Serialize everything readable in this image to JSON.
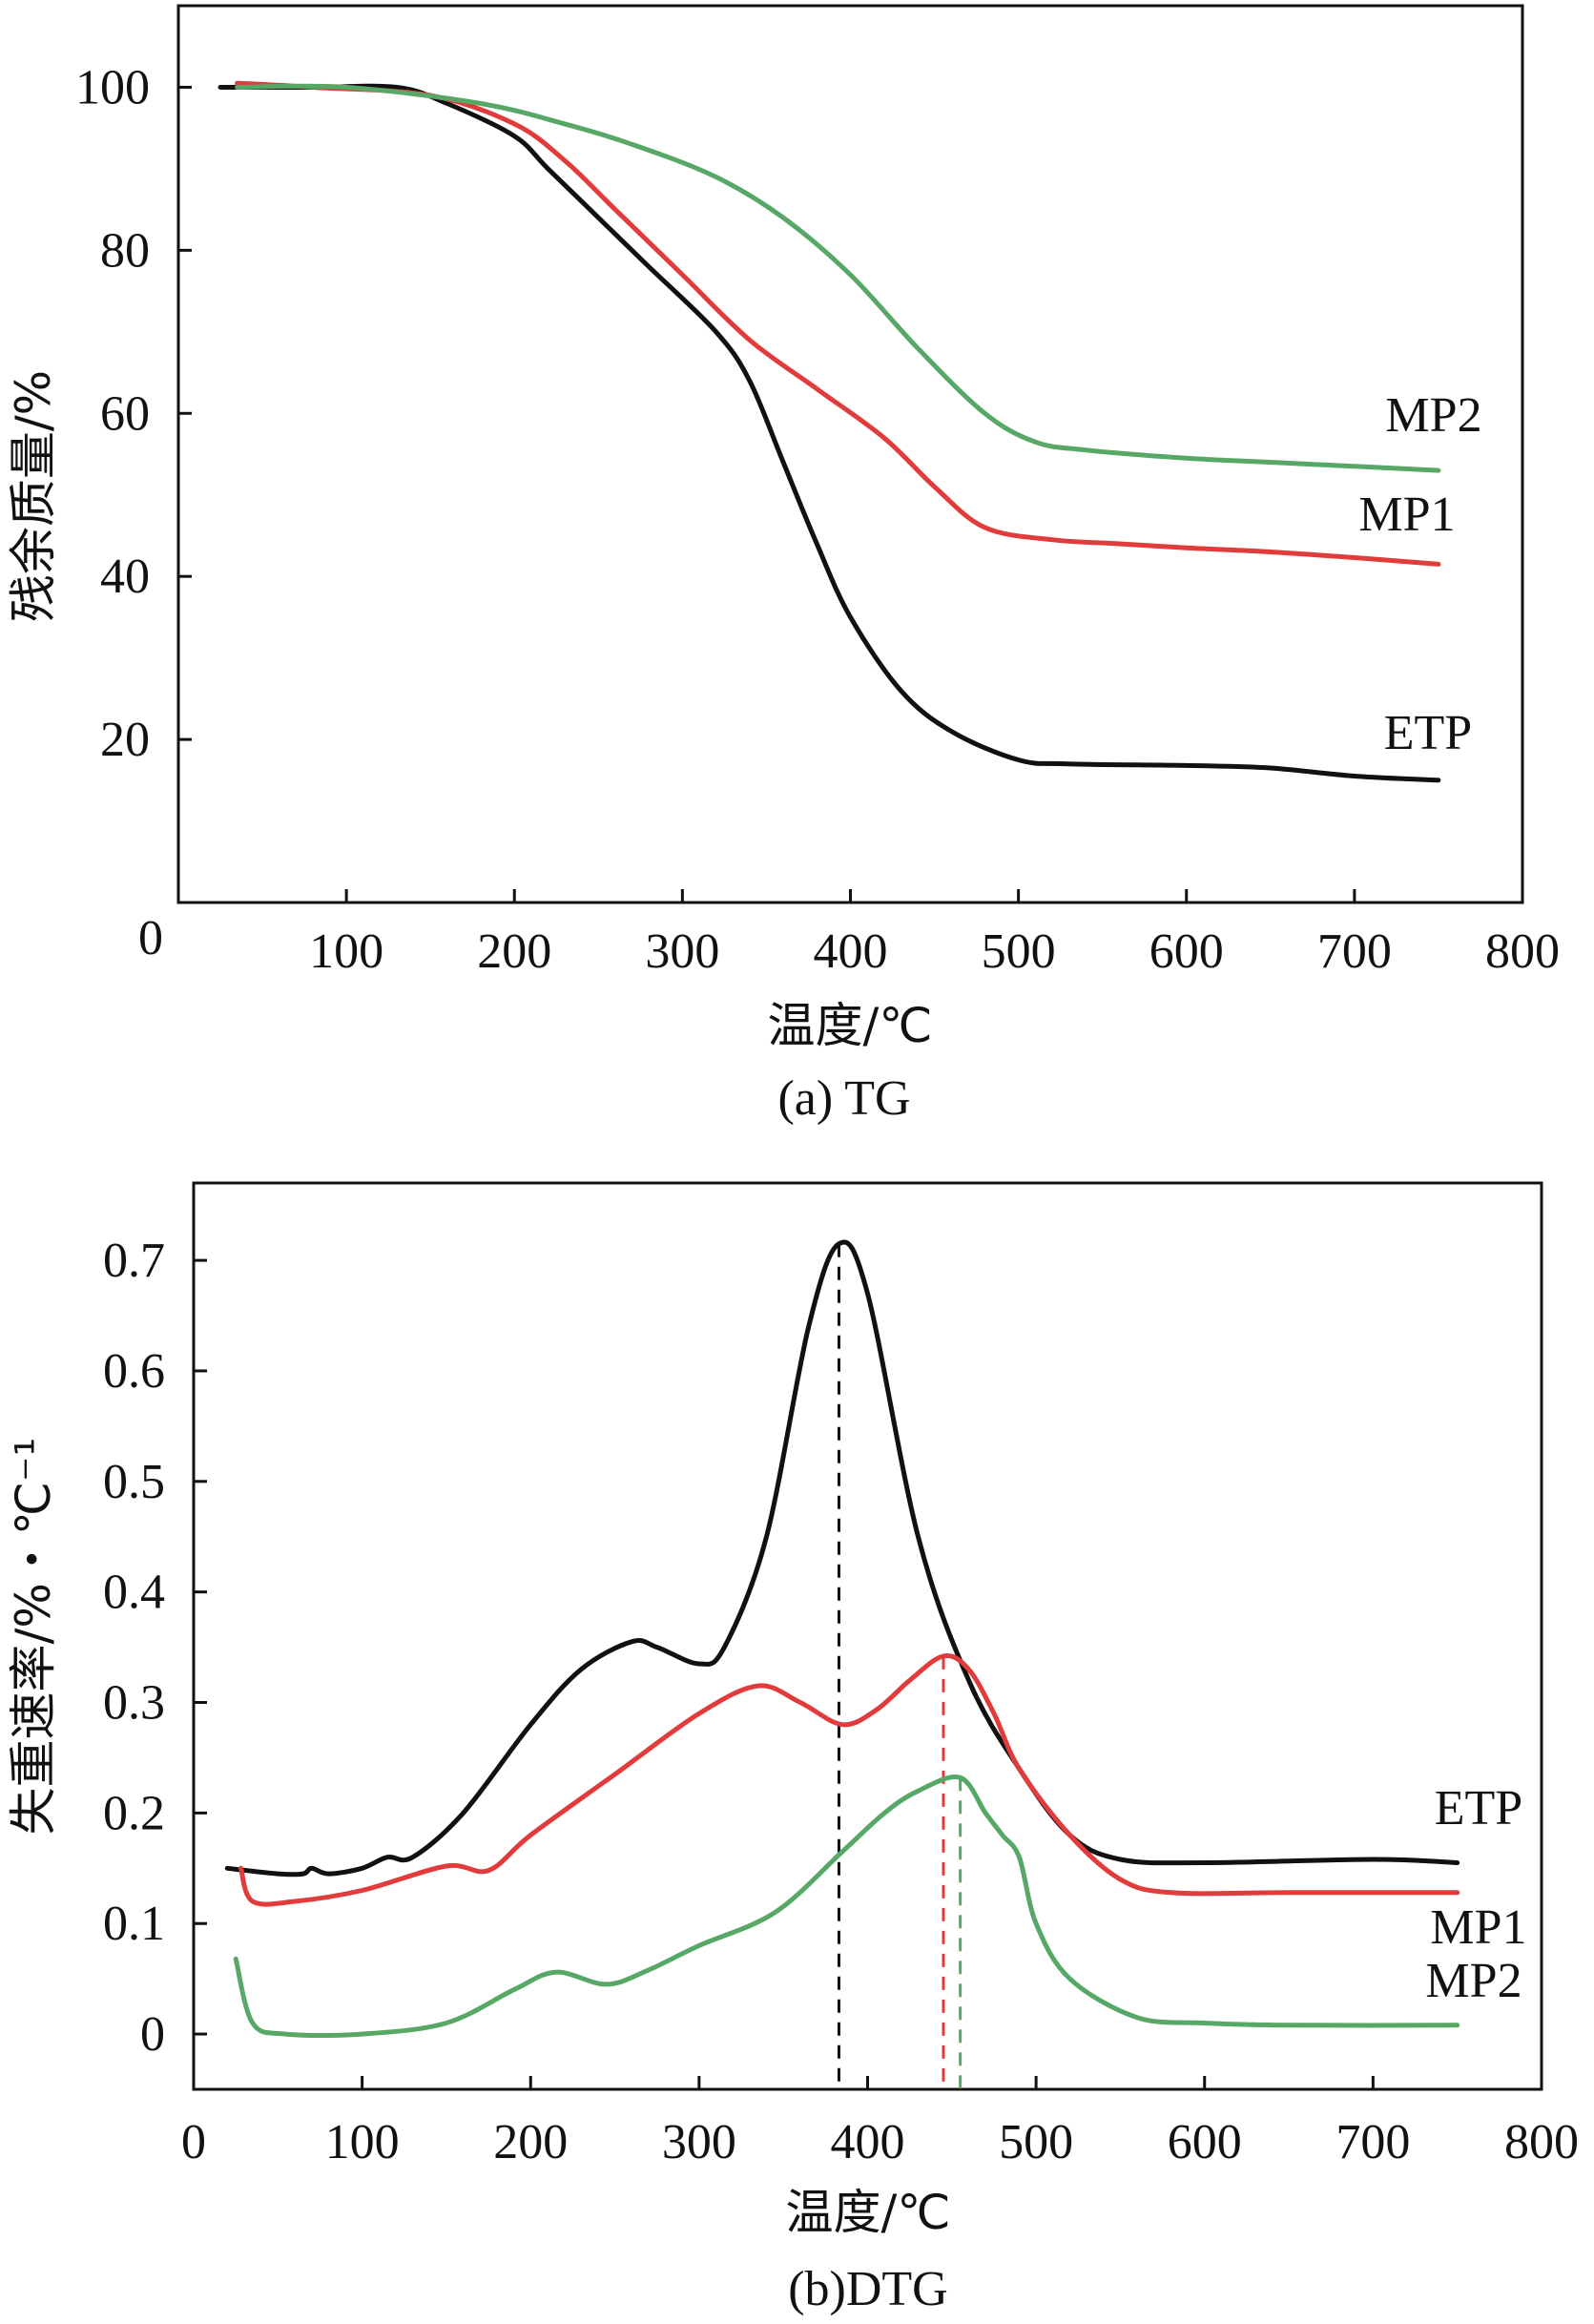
{
  "chart_data": [
    {
      "type": "line",
      "title": "(a) TG",
      "xlabel": "温度/℃",
      "ylabel": "残余质量/%",
      "xlim": [
        0,
        800
      ],
      "ylim": [
        0,
        110
      ],
      "x_ticks": [
        100,
        200,
        300,
        400,
        500,
        600,
        700,
        800
      ],
      "y_ticks": [
        20,
        40,
        60,
        80,
        100
      ],
      "origin_label": "0",
      "series": [
        {
          "name": "ETP",
          "color": "#111111",
          "x": [
            25,
            80,
            130,
            160,
            200,
            220,
            250,
            280,
            320,
            340,
            360,
            380,
            400,
            430,
            460,
            500,
            530,
            600,
            650,
            700,
            750
          ],
          "y": [
            100,
            100,
            100,
            98,
            94,
            90,
            84,
            78,
            70,
            64,
            54,
            44,
            35,
            26,
            21,
            17.5,
            17,
            16.8,
            16.5,
            15.5,
            15
          ]
        },
        {
          "name": "MP1",
          "color": "#e23b3b",
          "x": [
            35,
            80,
            150,
            200,
            230,
            260,
            300,
            340,
            380,
            420,
            450,
            480,
            520,
            560,
            600,
            650,
            700,
            750
          ],
          "y": [
            100.5,
            100,
            99,
            95.5,
            91,
            85,
            77,
            69,
            63,
            57,
            51,
            46,
            44.5,
            44,
            43.5,
            43,
            42.3,
            41.5
          ]
        },
        {
          "name": "MP2",
          "color": "#57a866",
          "x": [
            35,
            100,
            180,
            230,
            270,
            320,
            360,
            400,
            440,
            480,
            510,
            540,
            600,
            650,
            700,
            750
          ],
          "y": [
            100,
            100,
            98,
            95.5,
            93,
            89,
            84,
            77,
            68,
            60,
            56.5,
            55.5,
            54.5,
            54,
            53.5,
            53
          ]
        }
      ]
    },
    {
      "type": "line",
      "title": "(b)DTG",
      "xlabel": "温度/℃",
      "ylabel": "失重速率/%・℃⁻¹",
      "xlim": [
        0,
        800
      ],
      "ylim": [
        -0.05,
        0.77
      ],
      "x_ticks": [
        0,
        100,
        200,
        300,
        400,
        500,
        600,
        700,
        800
      ],
      "y_ticks": [
        0,
        0.1,
        0.2,
        0.3,
        0.4,
        0.5,
        0.6,
        0.7
      ],
      "series": [
        {
          "name": "ETP",
          "color": "#111111",
          "peak_x": 383,
          "x": [
            20,
            50,
            65,
            70,
            80,
            100,
            115,
            130,
            160,
            200,
            230,
            260,
            275,
            300,
            315,
            340,
            365,
            383,
            400,
            430,
            460,
            490,
            520,
            550,
            600,
            700,
            750
          ],
          "y": [
            0.15,
            0.145,
            0.145,
            0.15,
            0.145,
            0.15,
            0.16,
            0.16,
            0.2,
            0.28,
            0.33,
            0.355,
            0.35,
            0.335,
            0.35,
            0.45,
            0.64,
            0.715,
            0.67,
            0.45,
            0.32,
            0.24,
            0.18,
            0.158,
            0.155,
            0.158,
            0.155
          ]
        },
        {
          "name": "MP1",
          "color": "#e23b3b",
          "peak_x": 445,
          "x": [
            28,
            35,
            60,
            100,
            150,
            175,
            200,
            250,
            300,
            335,
            360,
            385,
            405,
            425,
            445,
            460,
            475,
            490,
            520,
            550,
            580,
            650,
            750
          ],
          "y": [
            0.15,
            0.12,
            0.12,
            0.13,
            0.152,
            0.148,
            0.18,
            0.235,
            0.29,
            0.315,
            0.3,
            0.28,
            0.293,
            0.32,
            0.342,
            0.33,
            0.29,
            0.24,
            0.18,
            0.14,
            0.128,
            0.128,
            0.128
          ]
        },
        {
          "name": "MP2",
          "color": "#57a866",
          "peak_x": 455,
          "x": [
            25,
            35,
            55,
            100,
            150,
            190,
            215,
            245,
            270,
            300,
            345,
            385,
            410,
            430,
            455,
            470,
            480,
            490,
            500,
            520,
            560,
            600,
            650,
            750
          ],
          "y": [
            0.068,
            0.01,
            0.0,
            0.0,
            0.01,
            0.04,
            0.056,
            0.045,
            0.058,
            0.08,
            0.11,
            0.165,
            0.2,
            0.22,
            0.232,
            0.2,
            0.18,
            0.16,
            0.1,
            0.05,
            0.015,
            0.01,
            0.008,
            0.008
          ]
        }
      ]
    }
  ]
}
